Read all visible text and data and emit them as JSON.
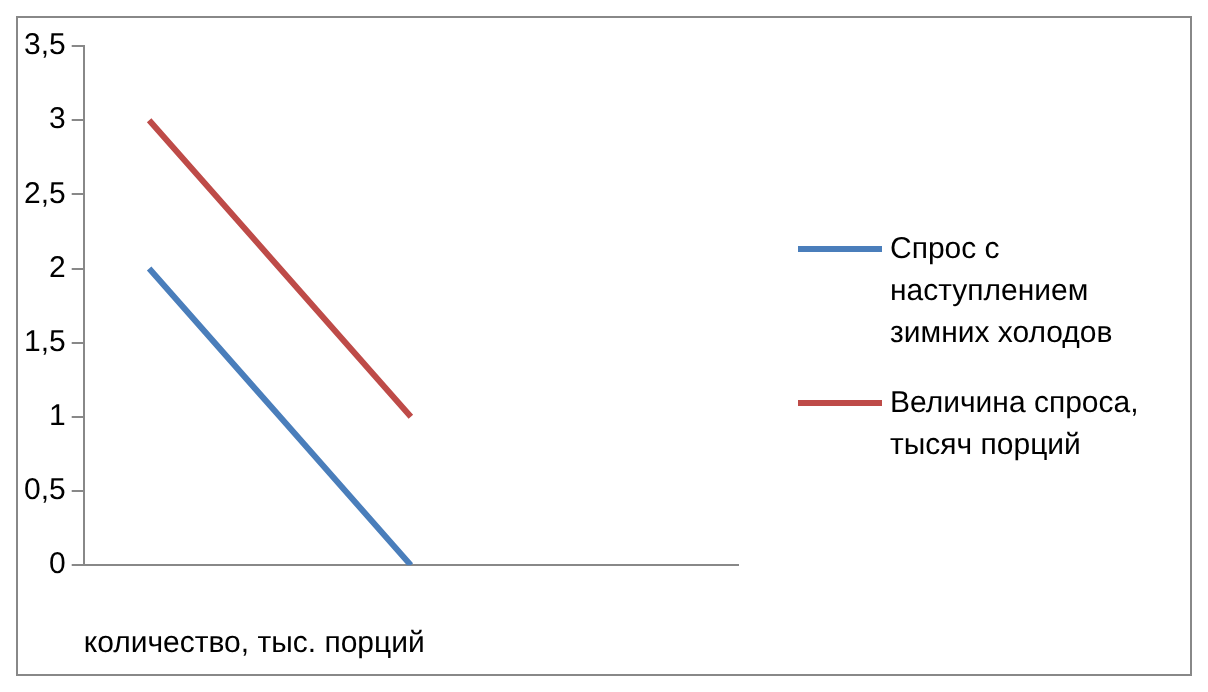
{
  "chart_data": {
    "type": "line",
    "xlabel": "количество, тыс. порций",
    "categories": [
      null,
      null,
      null,
      null,
      null
    ],
    "series": [
      {
        "name": "Спрос с наступлением зимних холодов",
        "color": "#4a7ebb",
        "values": [
          2,
          1,
          0,
          null,
          null
        ]
      },
      {
        "name": "Величина спроса, тысяч порций",
        "color": "#be4b48",
        "values": [
          3,
          2,
          1,
          null,
          null
        ]
      }
    ],
    "ylim": [
      0,
      3.5
    ],
    "yticks": [
      0,
      {
        "value": 0.5,
        "label": "0,5"
      },
      1,
      {
        "value": 1.5,
        "label": "1,5"
      },
      2,
      {
        "value": 2.5,
        "label": "2,5"
      },
      3,
      {
        "value": 3.5,
        "label": "3,5"
      }
    ],
    "grid": false,
    "legend": "right",
    "marker": "none",
    "line_style": "solid"
  }
}
